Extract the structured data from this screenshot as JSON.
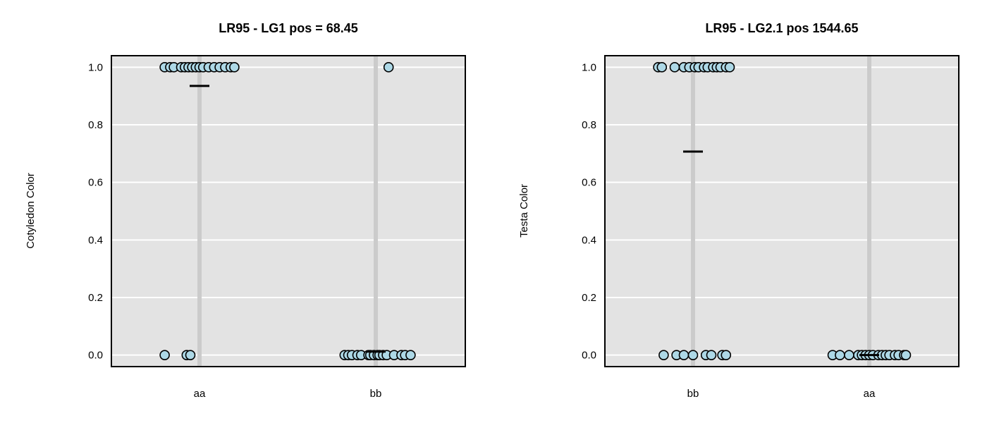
{
  "chart_data": [
    {
      "type": "scatter",
      "title": "LR95 - LG1 pos = 68.45",
      "xlabel": "",
      "ylabel": "Cotyledon Color",
      "categories": [
        "aa",
        "bb"
      ],
      "ylim": [
        -0.04,
        1.04
      ],
      "yticks": [
        "0.0",
        "0.2",
        "0.4",
        "0.6",
        "0.8",
        "1.0"
      ],
      "grid": true,
      "groups": [
        {
          "category": "aa",
          "mean": 0.935,
          "points": [
            {
              "jitter": -0.19,
              "y": 1.0
            },
            {
              "jitter": -0.16,
              "y": 1.0
            },
            {
              "jitter": -0.14,
              "y": 1.0
            },
            {
              "jitter": -0.1,
              "y": 1.0
            },
            {
              "jitter": -0.08,
              "y": 1.0
            },
            {
              "jitter": -0.06,
              "y": 1.0
            },
            {
              "jitter": -0.04,
              "y": 1.0
            },
            {
              "jitter": -0.02,
              "y": 1.0
            },
            {
              "jitter": 0.0,
              "y": 1.0
            },
            {
              "jitter": 0.02,
              "y": 1.0
            },
            {
              "jitter": 0.05,
              "y": 1.0
            },
            {
              "jitter": 0.08,
              "y": 1.0
            },
            {
              "jitter": 0.11,
              "y": 1.0
            },
            {
              "jitter": 0.14,
              "y": 1.0
            },
            {
              "jitter": 0.17,
              "y": 1.0
            },
            {
              "jitter": 0.19,
              "y": 1.0
            },
            {
              "jitter": -0.19,
              "y": 0.0
            },
            {
              "jitter": -0.07,
              "y": 0.0
            },
            {
              "jitter": -0.05,
              "y": 0.0
            }
          ]
        },
        {
          "category": "bb",
          "mean": 0.012,
          "points": [
            {
              "jitter": 0.07,
              "y": 1.0
            },
            {
              "jitter": -0.17,
              "y": 0.0
            },
            {
              "jitter": -0.15,
              "y": 0.0
            },
            {
              "jitter": -0.13,
              "y": 0.0
            },
            {
              "jitter": -0.1,
              "y": 0.0
            },
            {
              "jitter": -0.08,
              "y": 0.0
            },
            {
              "jitter": -0.04,
              "y": 0.0
            },
            {
              "jitter": -0.03,
              "y": 0.0
            },
            {
              "jitter": -0.01,
              "y": 0.0
            },
            {
              "jitter": 0.01,
              "y": 0.0
            },
            {
              "jitter": 0.02,
              "y": 0.0
            },
            {
              "jitter": 0.04,
              "y": 0.0
            },
            {
              "jitter": 0.06,
              "y": 0.0
            },
            {
              "jitter": 0.1,
              "y": 0.0
            },
            {
              "jitter": 0.14,
              "y": 0.0
            },
            {
              "jitter": 0.16,
              "y": 0.0
            },
            {
              "jitter": 0.19,
              "y": 0.0
            }
          ]
        }
      ]
    },
    {
      "type": "scatter",
      "title": "LR95 - LG2.1 pos 1544.65",
      "xlabel": "",
      "ylabel": "Testa Color",
      "categories": [
        "bb",
        "aa"
      ],
      "ylim": [
        -0.04,
        1.04
      ],
      "yticks": [
        "0.0",
        "0.2",
        "0.4",
        "0.6",
        "0.8",
        "1.0"
      ],
      "grid": true,
      "groups": [
        {
          "category": "bb",
          "mean": 0.707,
          "points": [
            {
              "jitter": -0.19,
              "y": 1.0
            },
            {
              "jitter": -0.17,
              "y": 1.0
            },
            {
              "jitter": -0.1,
              "y": 1.0
            },
            {
              "jitter": -0.05,
              "y": 1.0
            },
            {
              "jitter": -0.02,
              "y": 1.0
            },
            {
              "jitter": 0.01,
              "y": 1.0
            },
            {
              "jitter": 0.03,
              "y": 1.0
            },
            {
              "jitter": 0.06,
              "y": 1.0
            },
            {
              "jitter": 0.08,
              "y": 1.0
            },
            {
              "jitter": 0.11,
              "y": 1.0
            },
            {
              "jitter": 0.13,
              "y": 1.0
            },
            {
              "jitter": 0.15,
              "y": 1.0
            },
            {
              "jitter": 0.18,
              "y": 1.0
            },
            {
              "jitter": 0.2,
              "y": 1.0
            },
            {
              "jitter": -0.16,
              "y": 0.0
            },
            {
              "jitter": -0.09,
              "y": 0.0
            },
            {
              "jitter": -0.05,
              "y": 0.0
            },
            {
              "jitter": 0.0,
              "y": 0.0
            },
            {
              "jitter": 0.07,
              "y": 0.0
            },
            {
              "jitter": 0.1,
              "y": 0.0
            },
            {
              "jitter": 0.16,
              "y": 0.0
            },
            {
              "jitter": 0.18,
              "y": 0.0
            }
          ]
        },
        {
          "category": "aa",
          "mean": 0.0,
          "points": [
            {
              "jitter": -0.2,
              "y": 0.0
            },
            {
              "jitter": -0.16,
              "y": 0.0
            },
            {
              "jitter": -0.11,
              "y": 0.0
            },
            {
              "jitter": -0.06,
              "y": 0.0
            },
            {
              "jitter": -0.04,
              "y": 0.0
            },
            {
              "jitter": -0.02,
              "y": 0.0
            },
            {
              "jitter": 0.0,
              "y": 0.0
            },
            {
              "jitter": 0.02,
              "y": 0.0
            },
            {
              "jitter": 0.05,
              "y": 0.0
            },
            {
              "jitter": 0.07,
              "y": 0.0
            },
            {
              "jitter": 0.09,
              "y": 0.0
            },
            {
              "jitter": 0.11,
              "y": 0.0
            },
            {
              "jitter": 0.14,
              "y": 0.0
            },
            {
              "jitter": 0.16,
              "y": 0.0
            },
            {
              "jitter": 0.19,
              "y": 0.0
            },
            {
              "jitter": 0.2,
              "y": 0.0
            }
          ]
        }
      ]
    }
  ],
  "colors": {
    "panel_background": "#e3e3e3",
    "gridline": "#ffffff",
    "group_band": "#cbcbcb",
    "point_fill": "#add8e6",
    "point_stroke": "#000000",
    "mean_line": "#000000"
  }
}
